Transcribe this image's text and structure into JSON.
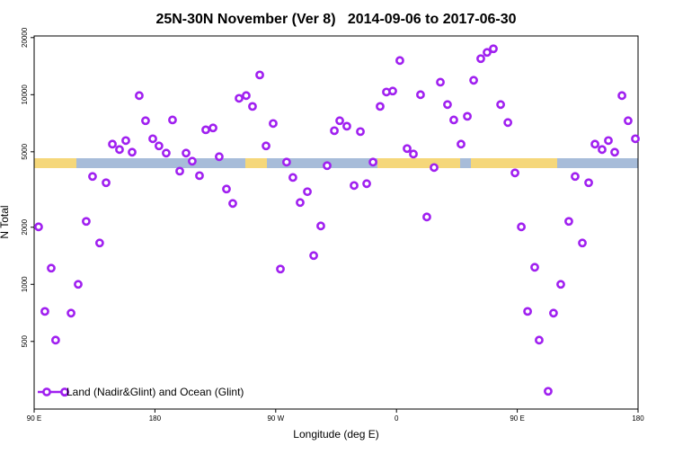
{
  "chart_data": {
    "type": "scatter",
    "title": "25N-30N November (Ver 8)   2014-09-06 to 2017-06-30",
    "x_label": "Longitude (deg E)",
    "y_label": "N Total",
    "log_y": true,
    "xlim": [
      90,
      540
    ],
    "xticks": [
      {
        "value": 90,
        "label": "90 E"
      },
      180,
      {
        "value": 270,
        "label": "90 W"
      },
      {
        "value": 360,
        "label": "0"
      },
      {
        "value": 450,
        "label": "90 E"
      },
      {
        "value": 540,
        "label": "180"
      }
    ],
    "ylim": [
      220,
      20400
    ],
    "yticks": [
      500,
      1000,
      2000,
      5000,
      10000,
      20000
    ],
    "legend_position": "bottom-left",
    "series": [
      {
        "name": "Land (Nadir&Glint) and Ocean (Glint)",
        "color": "#a020f0",
        "x": [
          93.3,
          98,
          102.7,
          106,
          112.8,
          117.5,
          122.8,
          128.8,
          133.5,
          138.8,
          143.6,
          148.3,
          153.6,
          158.3,
          163,
          168.3,
          173,
          178.4,
          183,
          188.4,
          193.1,
          198.5,
          203.2,
          207.8,
          213.2,
          217.9,
          223.3,
          227.9,
          233.3,
          238,
          242.7,
          248,
          252.7,
          258.1,
          262.8,
          268.1,
          273.5,
          278.1,
          282.8,
          288.2,
          293.6,
          298.3,
          303.6,
          308.3,
          313.7,
          317.7,
          323,
          328.4,
          333.1,
          337.8,
          342.5,
          347.8,
          352.5,
          357.2,
          362.5,
          367.9,
          372.6,
          377.9,
          382.6,
          388,
          392.7,
          398,
          402.7,
          408.1,
          412.8,
          417.5,
          422.8,
          427.5,
          432.2,
          437.6,
          443,
          448.3,
          453,
          457.7,
          463,
          466.3,
          473,
          477,
          482.4,
          488.4,
          493.1,
          498.5,
          503.2,
          507.9,
          513.2,
          517.9,
          522.6,
          528,
          532.6,
          538
        ],
        "values": [
          2010,
          720,
          1217,
          508,
          270,
          705,
          1000,
          2147,
          3705,
          1652,
          3433,
          5486,
          5138,
          5730,
          4974,
          9890,
          7290,
          5856,
          5370,
          4920,
          7360,
          3953,
          4920,
          4460,
          3743,
          6530,
          6680,
          4710,
          3180,
          2670,
          9570,
          9890,
          8670,
          12710,
          5370,
          7050,
          1204,
          4410,
          3660,
          2700,
          3080,
          1418,
          2032,
          4224,
          6460,
          7290,
          6820,
          3320,
          6390,
          3395,
          4410,
          8670,
          10330,
          10450,
          15140,
          5200,
          4865,
          10000,
          2266,
          4130,
          11640,
          8870,
          7360,
          5486,
          7690,
          11910,
          15490,
          16710,
          17460,
          8870,
          7130,
          3870,
          2010,
          720,
          1230,
          508,
          273,
          705,
          1000,
          2147,
          3705,
          1652,
          3433,
          5486,
          5138,
          5730,
          4974,
          9890,
          7290,
          5856
        ]
      }
    ]
  }
}
